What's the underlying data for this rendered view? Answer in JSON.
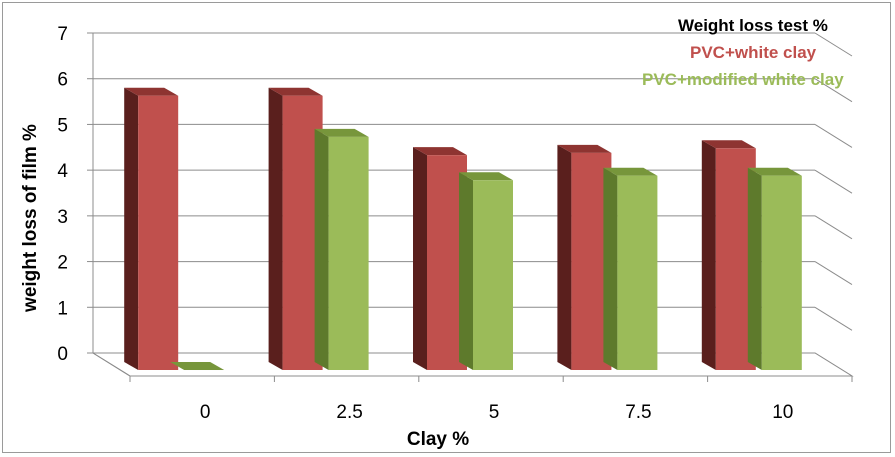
{
  "chart_data": {
    "type": "bar",
    "categories": [
      "0",
      "2.5",
      "5",
      "7.5",
      "10"
    ],
    "series": [
      {
        "name": "PVC+white clay",
        "values": [
          6.0,
          6.0,
          4.7,
          4.75,
          4.85
        ]
      },
      {
        "name": "PVC+modified white clay",
        "values": [
          0,
          5.1,
          4.15,
          4.25,
          4.25
        ]
      }
    ],
    "legend_title": "Weight loss test %",
    "xlabel": "Clay  %",
    "ylabel": "weight loss of film %",
    "ylim": [
      0,
      7
    ],
    "yticks": [
      "0",
      "1",
      "2",
      "3",
      "4",
      "5",
      "6",
      "7"
    ],
    "grid": true,
    "legend_position": "top-right",
    "colors": {
      "series1_front": "#c0504d",
      "series1_side": "#5a1f1d",
      "series1_top": "#8e3431",
      "series2_front": "#9bbb59",
      "series2_side": "#5e7a2c",
      "series2_top": "#77963b",
      "legend_title": "#000000",
      "legend_series1": "#c0504d",
      "legend_series2": "#9bbb59"
    }
  }
}
